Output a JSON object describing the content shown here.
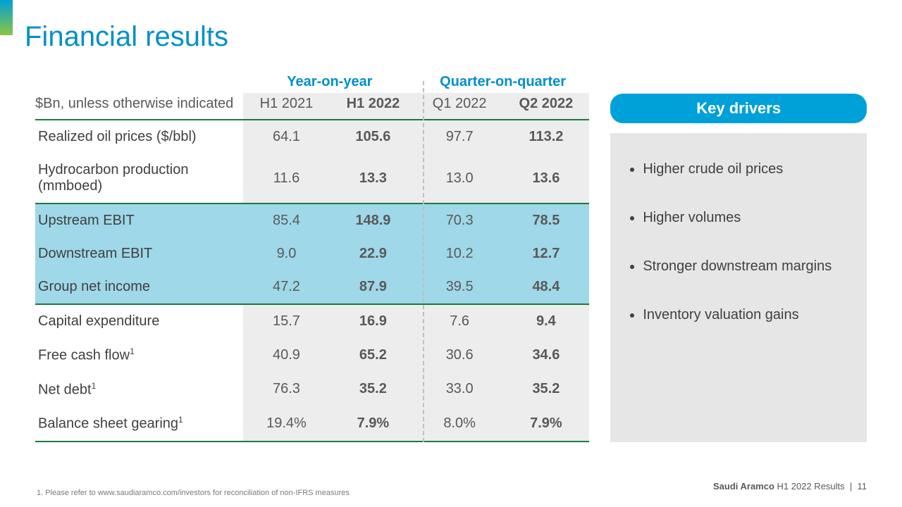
{
  "title": {
    "text": "Financial results",
    "color": "#0090c8"
  },
  "subtitle": "$Bn, unless otherwise indicated",
  "groups": {
    "yoy": {
      "label": "Year-on-year",
      "color": "#0090c8",
      "cols": [
        "H1 2021",
        "H1 2022"
      ]
    },
    "qoq": {
      "label": "Quarter-on-quarter",
      "color": "#0090c8",
      "cols": [
        "Q1 2022",
        "Q2 2022"
      ]
    }
  },
  "rows": [
    {
      "label": "Realized oil prices ($/bbl)",
      "vals": [
        "64.1",
        "105.6",
        "97.7",
        "113.2"
      ],
      "section": "a"
    },
    {
      "label": "Hydrocarbon production (mmboed)",
      "vals": [
        "11.6",
        "13.3",
        "13.0",
        "13.6"
      ],
      "section": "a"
    },
    {
      "label": "Upstream EBIT",
      "vals": [
        "85.4",
        "148.9",
        "70.3",
        "78.5"
      ],
      "section": "b"
    },
    {
      "label": "Downstream EBIT",
      "vals": [
        "9.0",
        "22.9",
        "10.2",
        "12.7"
      ],
      "section": "b"
    },
    {
      "label": "Group net income",
      "vals": [
        "47.2",
        "87.9",
        "39.5",
        "48.4"
      ],
      "section": "b"
    },
    {
      "label": "Capital expenditure",
      "vals": [
        "15.7",
        "16.9",
        "7.6",
        "9.4"
      ],
      "section": "c"
    },
    {
      "label": "Free cash flow",
      "sup": "1",
      "vals": [
        "40.9",
        "65.2",
        "30.6",
        "34.6"
      ],
      "section": "c"
    },
    {
      "label": "Net debt",
      "sup": "1",
      "vals": [
        "76.3",
        "35.2",
        "33.0",
        "35.2"
      ],
      "section": "c"
    },
    {
      "label": "Balance sheet gearing",
      "sup": "1",
      "vals": [
        "19.4%",
        "7.9%",
        "8.0%",
        "7.9%"
      ],
      "section": "c"
    }
  ],
  "highlightSection": "b",
  "highlightColor": "#9fd8e8",
  "keyDrivers": {
    "title": "Key drivers",
    "titleBg": "#00a0d8",
    "items": [
      "Higher crude oil prices",
      "Higher volumes",
      "Stronger downstream margins",
      "Inventory valuation gains"
    ]
  },
  "footnote": "1.  Please refer to www.saudiaramco.com/investors for reconciliation of non-IFRS measures",
  "footer": {
    "company": "Saudi Aramco",
    "period": "H1 2022 Results",
    "page": "11"
  },
  "style": {
    "shadeBg": "#ededed",
    "ruleColor": "#1b7a3e",
    "dividerLeftPx": 550
  }
}
